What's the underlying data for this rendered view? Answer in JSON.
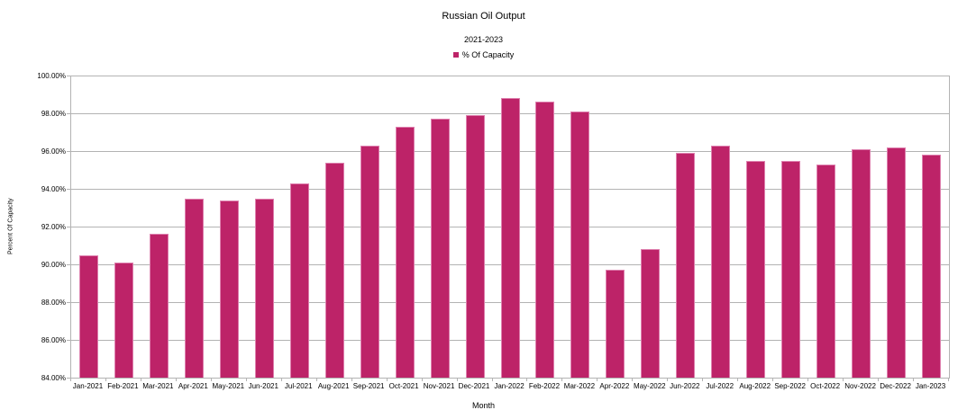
{
  "chart_data": {
    "type": "bar",
    "title": "Russian Oil Output",
    "subtitle": "2021-2023",
    "series_name": "% Of Capacity",
    "categories": [
      "Jan-2021",
      "Feb-2021",
      "Mar-2021",
      "Apr-2021",
      "May-2021",
      "Jun-2021",
      "Jul-2021",
      "Aug-2021",
      "Sep-2021",
      "Oct-2021",
      "Nov-2021",
      "Dec-2021",
      "Jan-2022",
      "Feb-2022",
      "Mar-2022",
      "Apr-2022",
      "May-2022",
      "Jun-2022",
      "Jul-2022",
      "Aug-2022",
      "Sep-2022",
      "Oct-2022",
      "Nov-2022",
      "Dec-2022",
      "Jan-2023"
    ],
    "values": [
      90.5,
      90.1,
      91.6,
      93.5,
      93.4,
      93.5,
      94.3,
      95.4,
      96.3,
      97.3,
      97.7,
      97.9,
      98.8,
      98.6,
      98.1,
      89.7,
      90.8,
      95.9,
      96.3,
      95.5,
      95.5,
      95.3,
      96.1,
      96.2,
      95.8
    ],
    "xlabel": "Month",
    "ylabel": "Percent Of Capacity",
    "ylim": [
      84,
      100
    ],
    "y_tick_step": 2,
    "y_tick_labels": [
      "100.00%",
      "98.00%",
      "96.00%",
      "94.00%",
      "92.00%",
      "90.00%",
      "88.00%",
      "86.00%",
      "84.00%"
    ],
    "grid": true,
    "legend_position": "top-center",
    "colors": {
      "bar_fill": "#bd2368",
      "bar_border": "#de80ae",
      "gridline": "#b3b3b3",
      "text": "#000000",
      "background": "#ffffff"
    }
  }
}
